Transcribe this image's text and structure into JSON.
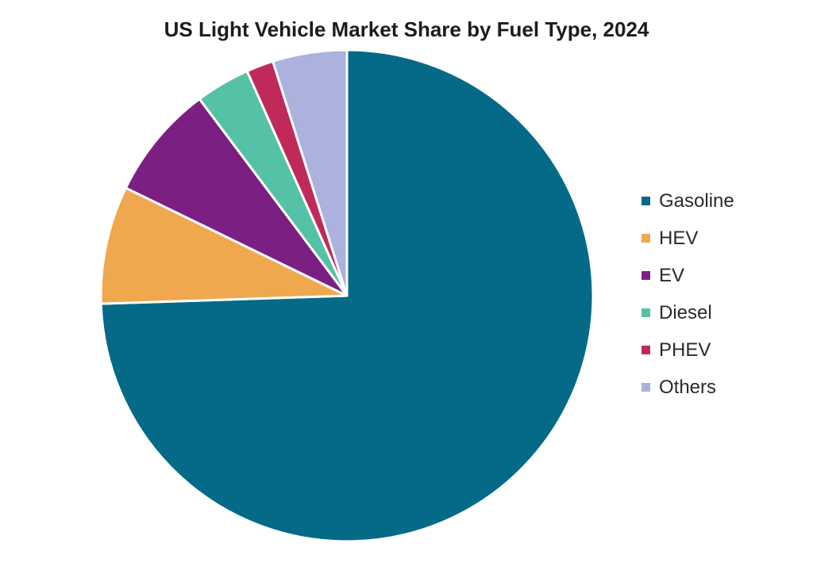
{
  "chart_data": {
    "type": "pie",
    "title": "US Light Vehicle Market Share by Fuel Type, 2024",
    "legend_position": "right",
    "start_angle_deg": 0,
    "direction": "clockwise",
    "slices": [
      {
        "label": "Gasoline",
        "value": 75.0,
        "color": "#056a87"
      },
      {
        "label": "HEV",
        "value": 7.8,
        "color": "#f0a84e"
      },
      {
        "label": "EV",
        "value": 7.6,
        "color": "#7b1f82"
      },
      {
        "label": "Diesel",
        "value": 3.6,
        "color": "#55c1a7"
      },
      {
        "label": "PHEV",
        "value": 1.8,
        "color": "#c02a5b"
      },
      {
        "label": "Others",
        "value": 4.9,
        "color": "#abb2de"
      }
    ]
  }
}
